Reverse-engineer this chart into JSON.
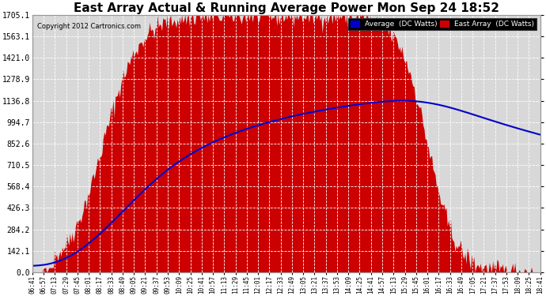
{
  "title": "East Array Actual & Running Average Power Mon Sep 24 18:52",
  "copyright": "Copyright 2012 Cartronics.com",
  "legend_avg": "Average  (DC Watts)",
  "legend_east": "East Array  (DC Watts)",
  "yticks": [
    0.0,
    142.1,
    284.2,
    426.3,
    568.4,
    710.5,
    852.6,
    994.7,
    1136.8,
    1278.9,
    1421.0,
    1563.1,
    1705.1
  ],
  "ymax": 1705.1,
  "background_color": "#ffffff",
  "plot_bg_color": "#d8d8d8",
  "grid_color": "#ffffff",
  "bar_color": "#cc0000",
  "avg_color": "#0000cc",
  "title_fontsize": 11,
  "xtick_labels": [
    "06:41",
    "06:57",
    "07:13",
    "07:29",
    "07:45",
    "08:01",
    "08:17",
    "08:33",
    "08:49",
    "09:05",
    "09:21",
    "09:37",
    "09:53",
    "10:09",
    "10:25",
    "10:41",
    "10:57",
    "11:13",
    "11:29",
    "11:45",
    "12:01",
    "12:17",
    "12:33",
    "12:49",
    "13:05",
    "13:21",
    "13:37",
    "13:53",
    "14:09",
    "14:25",
    "14:41",
    "14:57",
    "15:13",
    "15:29",
    "15:45",
    "16:01",
    "16:17",
    "16:33",
    "16:49",
    "17:05",
    "17:21",
    "17:37",
    "17:53",
    "18:09",
    "18:25",
    "18:41"
  ]
}
